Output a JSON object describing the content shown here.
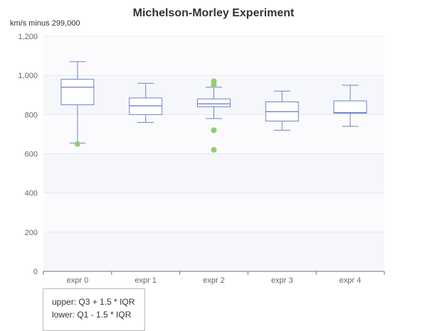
{
  "chart_data": {
    "type": "boxplot",
    "title": "Michelson-Morley Experiment",
    "ylabel": "km/s minus 299,000",
    "xlabel": "",
    "ylim": [
      0,
      1200
    ],
    "yticks": [
      "0",
      "200",
      "400",
      "600",
      "800",
      "1,000",
      "1,200"
    ],
    "ytick_values": [
      0,
      200,
      400,
      600,
      800,
      1000,
      1200
    ],
    "grid": true,
    "categories": [
      "expr 0",
      "expr 1",
      "expr 2",
      "expr 3",
      "expr 4"
    ],
    "boxes": [
      {
        "min": 655,
        "q1": 850,
        "median": 940,
        "q3": 980,
        "max": 1070
      },
      {
        "min": 760,
        "q1": 800,
        "median": 845,
        "q3": 885,
        "max": 960
      },
      {
        "min": 780,
        "q1": 840,
        "median": 855,
        "q3": 880,
        "max": 940
      },
      {
        "min": 720,
        "q1": 767,
        "median": 815,
        "q3": 865,
        "max": 920
      },
      {
        "min": 740,
        "q1": 807,
        "median": 810,
        "q3": 870,
        "max": 950
      }
    ],
    "outliers": [
      {
        "category": "expr 0",
        "value": 650
      },
      {
        "category": "expr 2",
        "value": 970
      },
      {
        "category": "expr 2",
        "value": 950
      },
      {
        "category": "expr 2",
        "value": 720
      },
      {
        "category": "expr 2",
        "value": 720
      },
      {
        "category": "expr 2",
        "value": 620
      }
    ],
    "colors": {
      "box": "#6f83c9",
      "outlier": "#91cc75",
      "band": "#f6f7fb",
      "grid": "#e6e8ef",
      "axis": "#6e7079"
    }
  },
  "note": {
    "lines": [
      "upper: Q3 + 1.5 * IQR",
      "lower: Q1 - 1.5 * IQR"
    ]
  }
}
